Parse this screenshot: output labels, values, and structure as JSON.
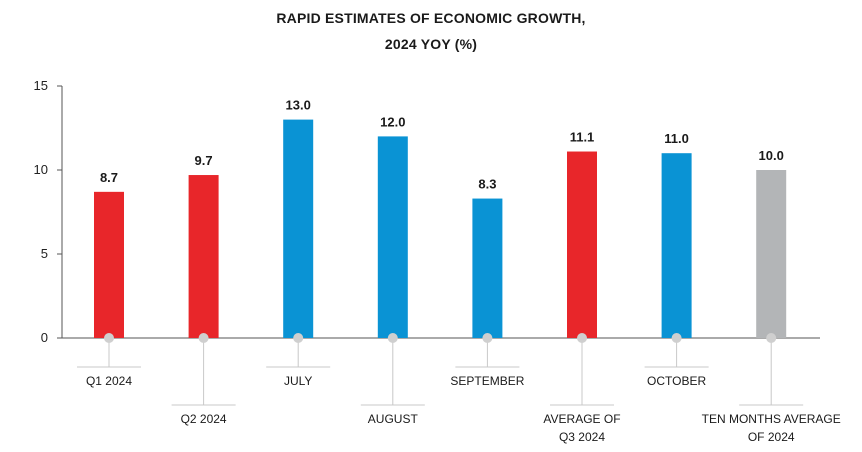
{
  "chart_data": {
    "type": "bar",
    "title_lines": [
      "RAPID ESTIMATES OF ECONOMIC GROWTH,",
      "2024 YOY (%)"
    ],
    "categories": [
      {
        "lines": [
          "Q1 2024"
        ],
        "level": 1
      },
      {
        "lines": [
          "Q2 2024"
        ],
        "level": 2
      },
      {
        "lines": [
          "JULY"
        ],
        "level": 1
      },
      {
        "lines": [
          "AUGUST"
        ],
        "level": 2
      },
      {
        "lines": [
          "SEPTEMBER"
        ],
        "level": 1
      },
      {
        "lines": [
          "AVERAGE OF",
          "Q3 2024"
        ],
        "level": 2
      },
      {
        "lines": [
          "OCTOBER"
        ],
        "level": 1
      },
      {
        "lines": [
          "TEN MONTHS AVERAGE",
          "OF 2024"
        ],
        "level": 2
      }
    ],
    "values": [
      8.7,
      9.7,
      13.0,
      12.0,
      8.3,
      11.1,
      11.0,
      10.0
    ],
    "value_labels": [
      "8.7",
      "9.7",
      "13.0",
      "12.0",
      "8.3",
      "11.1",
      "11.0",
      "10.0"
    ],
    "colors": [
      "#e8262a",
      "#e8262a",
      "#0a93d4",
      "#0a93d4",
      "#0a93d4",
      "#e8262a",
      "#0a93d4",
      "#b3b5b7"
    ],
    "yticks": [
      0,
      5,
      10,
      15
    ],
    "ylim": [
      0,
      15
    ],
    "grid": false
  }
}
